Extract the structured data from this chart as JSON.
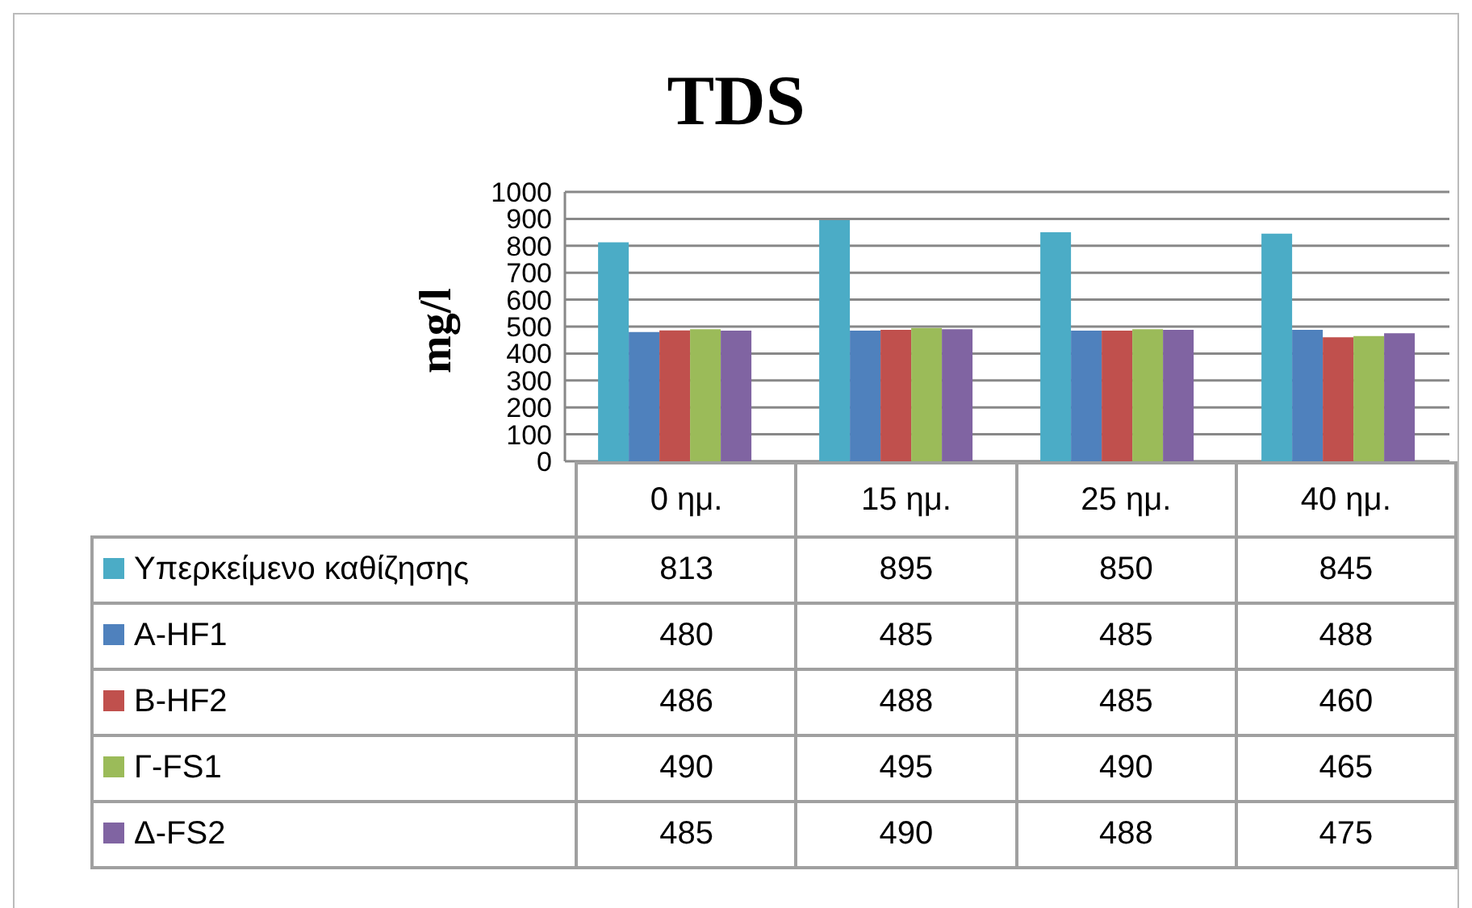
{
  "chart_data": {
    "type": "bar",
    "title": "TDS",
    "ylabel": "mg/l",
    "categories": [
      "0 ημ.",
      "15 ημ.",
      "25 ημ.",
      "40 ημ."
    ],
    "series": [
      {
        "name": "Υπερκείμενο καθίζησης",
        "color": "#4bacc6",
        "values": [
          813,
          895,
          850,
          845
        ]
      },
      {
        "name": "Α-HF1",
        "color": "#4f81bd",
        "values": [
          480,
          485,
          485,
          488
        ]
      },
      {
        "name": "Β-HF2",
        "color": "#c0504d",
        "values": [
          486,
          488,
          485,
          460
        ]
      },
      {
        "name": "Γ-FS1",
        "color": "#9bbb59",
        "values": [
          490,
          495,
          490,
          465
        ]
      },
      {
        "name": "Δ-FS2",
        "color": "#8064a2",
        "values": [
          485,
          490,
          488,
          475
        ]
      }
    ],
    "ylim": [
      0,
      1000
    ],
    "yticks": [
      0,
      100,
      200,
      300,
      400,
      500,
      600,
      700,
      800,
      900,
      1000
    ],
    "grid": "y",
    "legend": "bottom",
    "data_labels": true
  }
}
